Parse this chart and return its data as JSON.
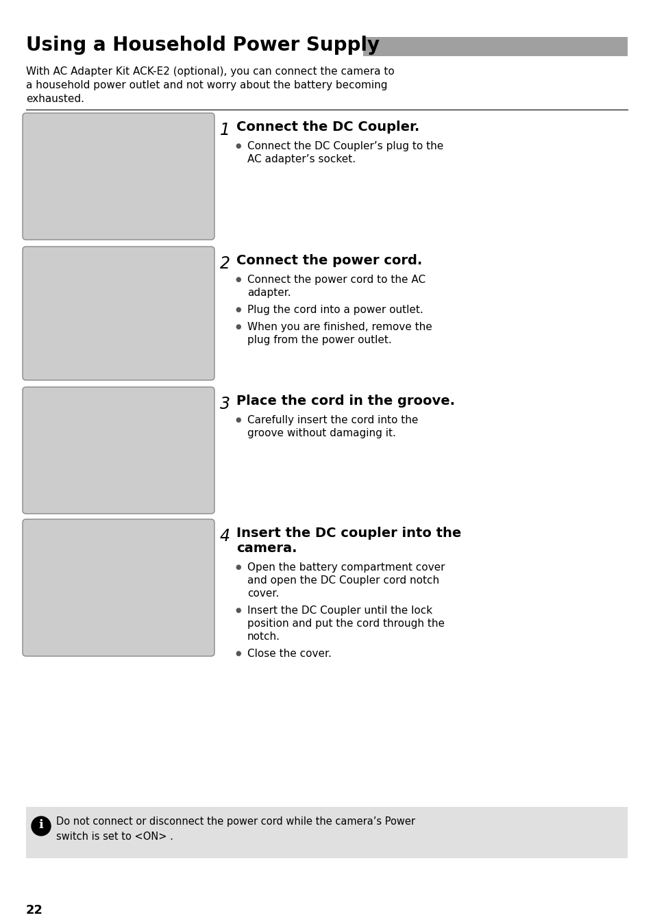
{
  "title": "Using a Household Power Supply",
  "title_fontsize": 20,
  "background_color": "#ffffff",
  "intro_lines": [
    "With AC Adapter Kit ACK-E2 (optional), you can connect the camera to",
    "a household power outlet and not worry about the battery becoming",
    "exhausted."
  ],
  "steps": [
    {
      "number": "1",
      "heading_lines": [
        "Connect the DC Coupler."
      ],
      "bullets": [
        [
          "Connect the DC Coupler’s plug to the",
          "AC adapter’s socket."
        ]
      ]
    },
    {
      "number": "2",
      "heading_lines": [
        "Connect the power cord."
      ],
      "bullets": [
        [
          "Connect the power cord to the AC",
          "adapter."
        ],
        [
          "Plug the cord into a power outlet."
        ],
        [
          "When you are finished, remove the",
          "plug from the power outlet."
        ]
      ]
    },
    {
      "number": "3",
      "heading_lines": [
        "Place the cord in the groove."
      ],
      "bullets": [
        [
          "Carefully insert the cord into the",
          "groove without damaging it."
        ]
      ]
    },
    {
      "number": "4",
      "heading_lines": [
        "Insert the DC coupler into the",
        "camera."
      ],
      "bullets": [
        [
          "Open the battery compartment cover",
          "and open the DC Coupler cord notch",
          "cover."
        ],
        [
          "Insert the DC Coupler until the lock",
          "position and put the cord through the",
          "notch."
        ],
        [
          "Close the cover."
        ]
      ]
    }
  ],
  "warning_lines": [
    "Do not connect or disconnect the power cord while the camera’s Power",
    "switch is set to <ON> ."
  ],
  "warning_bg": "#e0e0e0",
  "page_number": "22",
  "gray_bar_color": "#a0a0a0",
  "img_box_color": "#cccccc",
  "img_box_edge": "#888888"
}
